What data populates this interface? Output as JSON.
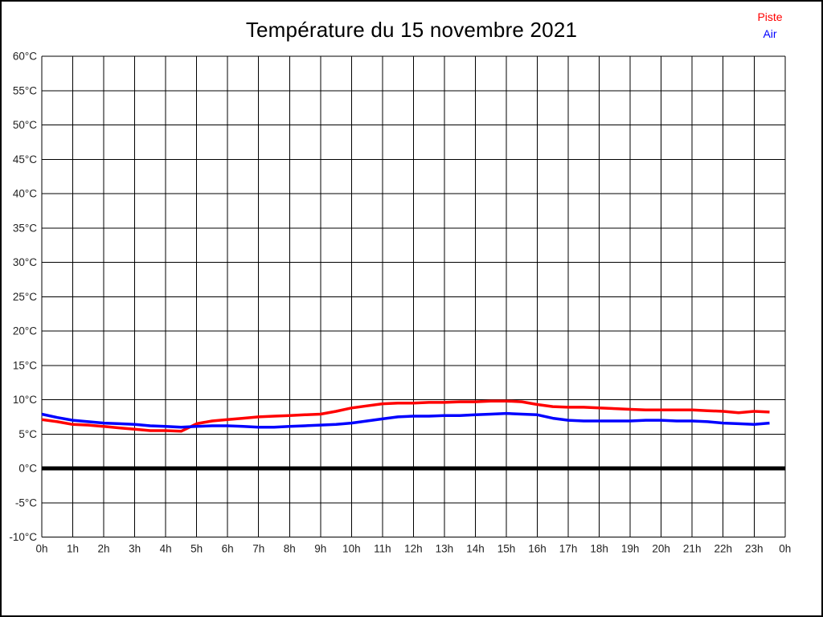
{
  "title": "Température du 15 novembre 2021",
  "legend": {
    "items": [
      {
        "label": "Piste",
        "color": "#ff0000"
      },
      {
        "label": "Air",
        "color": "#0000ff"
      }
    ]
  },
  "chart_data": {
    "type": "line",
    "title": "Température du 15 novembre 2021",
    "xlabel": "",
    "ylabel": "",
    "grid": true,
    "legend_position": "top-right",
    "ylim": [
      -10,
      60
    ],
    "y_ticks": [
      60,
      55,
      50,
      45,
      40,
      35,
      30,
      25,
      20,
      15,
      10,
      5,
      0,
      -5,
      -10
    ],
    "y_tick_suffix": "°C",
    "xlim_hours": [
      0,
      24
    ],
    "x_tick_hours": [
      0,
      1,
      2,
      3,
      4,
      5,
      6,
      7,
      8,
      9,
      10,
      11,
      12,
      13,
      14,
      15,
      16,
      17,
      18,
      19,
      20,
      21,
      22,
      23,
      24
    ],
    "x_tick_labels": [
      "0h",
      "1h",
      "2h",
      "3h",
      "4h",
      "5h",
      "6h",
      "7h",
      "8h",
      "9h",
      "10h",
      "11h",
      "12h",
      "13h",
      "14h",
      "15h",
      "16h",
      "17h",
      "18h",
      "19h",
      "20h",
      "21h",
      "22h",
      "23h",
      "0h"
    ],
    "zero_line": {
      "value": 0,
      "color": "#000000"
    },
    "x_hours": [
      0,
      0.5,
      1,
      1.5,
      2,
      2.5,
      3,
      3.5,
      4,
      4.5,
      5,
      5.5,
      6,
      6.5,
      7,
      7.5,
      8,
      8.5,
      9,
      9.5,
      10,
      10.5,
      11,
      11.5,
      12,
      12.5,
      13,
      13.5,
      14,
      14.5,
      15,
      15.5,
      16,
      16.5,
      17,
      17.5,
      18,
      18.5,
      19,
      19.5,
      20,
      20.5,
      21,
      21.5,
      22,
      22.5,
      23,
      23.5
    ],
    "series": [
      {
        "name": "Piste",
        "color": "#ff0000",
        "values": [
          7.1,
          6.8,
          6.4,
          6.3,
          6.1,
          5.9,
          5.7,
          5.5,
          5.5,
          5.4,
          6.5,
          6.9,
          7.1,
          7.3,
          7.5,
          7.6,
          7.7,
          7.8,
          7.9,
          8.3,
          8.8,
          9.1,
          9.4,
          9.5,
          9.5,
          9.6,
          9.6,
          9.7,
          9.7,
          9.8,
          9.8,
          9.7,
          9.3,
          9.0,
          8.9,
          8.9,
          8.8,
          8.7,
          8.6,
          8.5,
          8.5,
          8.5,
          8.5,
          8.4,
          8.3,
          8.1,
          8.3,
          8.2
        ]
      },
      {
        "name": "Air",
        "color": "#0000ff",
        "values": [
          7.9,
          7.4,
          7.0,
          6.8,
          6.6,
          6.5,
          6.4,
          6.2,
          6.1,
          6.0,
          6.1,
          6.2,
          6.2,
          6.1,
          6.0,
          6.0,
          6.1,
          6.2,
          6.3,
          6.4,
          6.6,
          6.9,
          7.2,
          7.5,
          7.6,
          7.6,
          7.7,
          7.7,
          7.8,
          7.9,
          8.0,
          7.9,
          7.8,
          7.3,
          7.0,
          6.9,
          6.9,
          6.9,
          6.9,
          7.0,
          7.0,
          6.9,
          6.9,
          6.8,
          6.6,
          6.5,
          6.4,
          6.6
        ]
      }
    ]
  }
}
